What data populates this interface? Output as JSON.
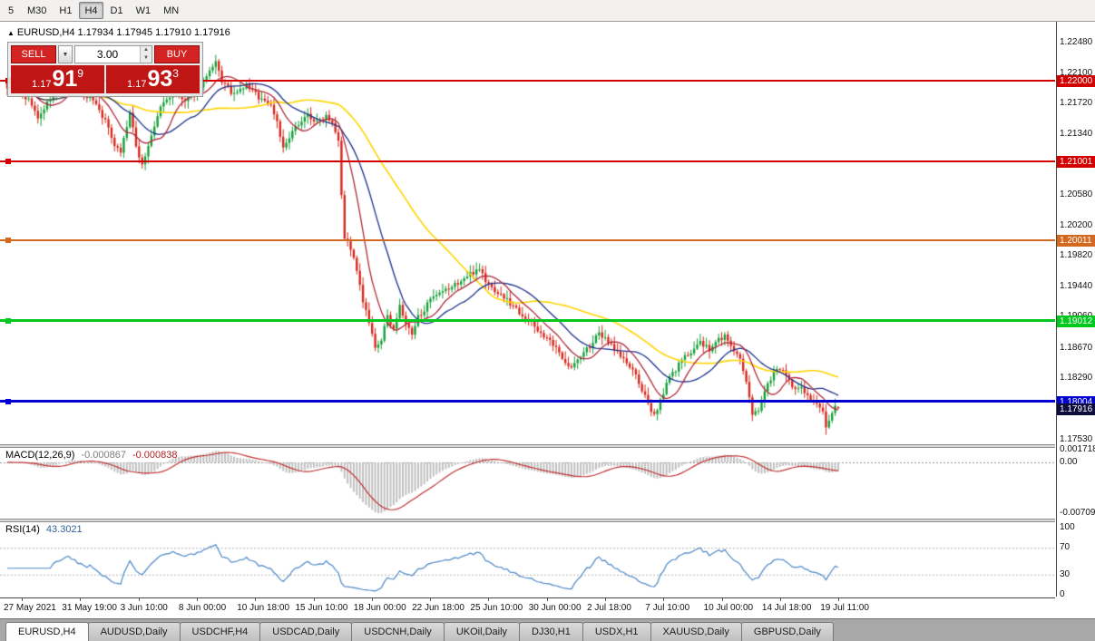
{
  "colors": {
    "candle_up": "#17a038",
    "candle_down": "#d8281c",
    "ma_fast": "#b02838",
    "ma_mid": "#1c2f8c",
    "ma_slow": "#ffd400",
    "macd_hist": "#c0c0c0",
    "macd_signal": "#c03030",
    "rsi_line": "#4a86c8",
    "buy_sell_red": "#d32222",
    "price_box_red": "#bf1515",
    "current_price_bg": "#0d0d3d"
  },
  "icons": {
    "collapse": "▲",
    "dropdown": "▼",
    "spin_up": "▲",
    "spin_down": "▼"
  },
  "toolbar": {
    "timeframes": [
      {
        "label": "5",
        "active": false
      },
      {
        "label": "M30",
        "active": false
      },
      {
        "label": "H1",
        "active": false
      },
      {
        "label": "H4",
        "active": true
      },
      {
        "label": "D1",
        "active": false
      },
      {
        "label": "W1",
        "active": false
      },
      {
        "label": "MN",
        "active": false
      }
    ]
  },
  "symbol_header": {
    "text": "EURUSD,H4 1.17934 1.17945 1.17910 1.17916"
  },
  "trade_panel": {
    "sell_label": "SELL",
    "buy_label": "BUY",
    "volume_value": "3.00",
    "sell_price": {
      "prefix": "1.17",
      "big": "91",
      "sup": "9"
    },
    "buy_price": {
      "prefix": "1.17",
      "big": "93",
      "sup": "3"
    }
  },
  "price_axis": {
    "ticks": [
      "1.22480",
      "1.22100",
      "1.21720",
      "1.21340",
      "1.20960",
      "1.20580",
      "1.20200",
      "1.19820",
      "1.19440",
      "1.19060",
      "1.18670",
      "1.18290",
      "1.17910",
      "1.17530"
    ],
    "current_price_box": {
      "price": "1.17916",
      "value": 1.17916
    }
  },
  "levels": [
    {
      "price": "1.22000",
      "value": 1.22,
      "color": "#d40000",
      "thickness": 2
    },
    {
      "price": "1.21001",
      "value": 1.21001,
      "color": "#d40000",
      "thickness": 2
    },
    {
      "price": "1.20011",
      "value": 1.20011,
      "color": "#d2691e",
      "thickness": 2
    },
    {
      "price": "1.19012",
      "value": 1.19012,
      "color": "#00c81e",
      "thickness": 3
    },
    {
      "price": "1.18004",
      "value": 1.18004,
      "color": "#0000d0",
      "thickness": 3
    }
  ],
  "time_axis": {
    "labels": [
      "27 May 2021",
      "31 May 19:00",
      "3 Jun 10:00",
      "8 Jun 00:00",
      "10 Jun 18:00",
      "15 Jun 10:00",
      "18 Jun 00:00",
      "22 Jun 18:00",
      "25 Jun 10:00",
      "30 Jun 00:00",
      "2 Jul 18:00",
      "7 Jul 10:00",
      "10 Jul 00:00",
      "14 Jul 18:00",
      "19 Jul 11:00"
    ]
  },
  "indicators": {
    "macd": {
      "name": "MACD(12,26,9)",
      "main_value": "-0.000867",
      "signal_value": "-0.000838",
      "axis_labels": [
        {
          "text": "0.001718",
          "value": 0.001718
        },
        {
          "text": "0.00",
          "value": 0
        },
        {
          "text": "-0.00709",
          "value": -0.00709
        }
      ]
    },
    "rsi": {
      "name": "RSI(14)",
      "value": "43.3021",
      "axis_labels": [
        {
          "text": "100",
          "value": 100
        },
        {
          "text": "70",
          "value": 70
        },
        {
          "text": "30",
          "value": 30
        },
        {
          "text": "0",
          "value": 0
        }
      ],
      "level_lines": [
        70,
        30
      ]
    }
  },
  "bottom_tabs": [
    {
      "label": "EURUSD,H4",
      "active": true
    },
    {
      "label": "AUDUSD,Daily",
      "active": false
    },
    {
      "label": "USDCHF,H4",
      "active": false
    },
    {
      "label": "USDCAD,Daily",
      "active": false
    },
    {
      "label": "USDCNH,Daily",
      "active": false
    },
    {
      "label": "UKOil,Daily",
      "active": false
    },
    {
      "label": "DJ30,H1",
      "active": false
    },
    {
      "label": "USDX,H1",
      "active": false
    },
    {
      "label": "XAUUSD,Daily",
      "active": false
    },
    {
      "label": "GBPUSD,Daily",
      "active": false
    }
  ],
  "chart_data": {
    "type": "candlestick",
    "symbol": "EURUSD",
    "timeframe": "H4",
    "bars": 272,
    "seed": 9,
    "y_range": [
      1.1752,
      1.2274
    ],
    "ohlc_last": {
      "open": 1.17934,
      "high": 1.17945,
      "low": 1.1791,
      "close": 1.17916
    },
    "moving_averages": [
      {
        "period": 50,
        "color_key": "ma_slow"
      },
      {
        "period": 21,
        "color_key": "ma_mid"
      },
      {
        "period": 10,
        "color_key": "ma_fast"
      }
    ],
    "price_anchors": [
      [
        0,
        1.2193
      ],
      [
        4,
        1.2186
      ],
      [
        8,
        1.2172
      ],
      [
        10,
        1.2152
      ],
      [
        12,
        1.2166
      ],
      [
        16,
        1.2188
      ],
      [
        20,
        1.2198
      ],
      [
        24,
        1.2186
      ],
      [
        28,
        1.2178
      ],
      [
        32,
        1.215
      ],
      [
        35,
        1.2122
      ],
      [
        37,
        1.2112
      ],
      [
        40,
        1.216
      ],
      [
        42,
        1.2118
      ],
      [
        44,
        1.2096
      ],
      [
        47,
        1.213
      ],
      [
        50,
        1.2168
      ],
      [
        54,
        1.2186
      ],
      [
        58,
        1.2174
      ],
      [
        62,
        1.219
      ],
      [
        66,
        1.221
      ],
      [
        68,
        1.2222
      ],
      [
        70,
        1.22
      ],
      [
        74,
        1.2182
      ],
      [
        78,
        1.2195
      ],
      [
        82,
        1.218
      ],
      [
        86,
        1.217
      ],
      [
        88,
        1.215
      ],
      [
        90,
        1.2115
      ],
      [
        92,
        1.2128
      ],
      [
        95,
        1.2148
      ],
      [
        98,
        1.2158
      ],
      [
        101,
        1.2148
      ],
      [
        104,
        1.2158
      ],
      [
        106,
        1.215
      ],
      [
        108,
        1.2128
      ],
      [
        109,
        1.206
      ],
      [
        110,
        1.2005
      ],
      [
        112,
        1.1992
      ],
      [
        114,
        1.1962
      ],
      [
        116,
        1.1925
      ],
      [
        118,
        1.1898
      ],
      [
        120,
        1.1865
      ],
      [
        122,
        1.1878
      ],
      [
        124,
        1.1905
      ],
      [
        126,
        1.1892
      ],
      [
        128,
        1.1918
      ],
      [
        130,
        1.1898
      ],
      [
        132,
        1.1882
      ],
      [
        134,
        1.1906
      ],
      [
        138,
        1.1926
      ],
      [
        142,
        1.1936
      ],
      [
        146,
        1.1946
      ],
      [
        150,
        1.1956
      ],
      [
        154,
        1.1968
      ],
      [
        156,
        1.195
      ],
      [
        158,
        1.1942
      ],
      [
        162,
        1.193
      ],
      [
        166,
        1.1916
      ],
      [
        170,
        1.1902
      ],
      [
        174,
        1.1886
      ],
      [
        178,
        1.187
      ],
      [
        181,
        1.1856
      ],
      [
        184,
        1.1842
      ],
      [
        186,
        1.1852
      ],
      [
        190,
        1.187
      ],
      [
        193,
        1.1884
      ],
      [
        196,
        1.1876
      ],
      [
        199,
        1.1862
      ],
      [
        202,
        1.1848
      ],
      [
        205,
        1.1832
      ],
      [
        207,
        1.1815
      ],
      [
        209,
        1.1796
      ],
      [
        210,
        1.1784
      ],
      [
        212,
        1.1792
      ],
      [
        214,
        1.1812
      ],
      [
        216,
        1.183
      ],
      [
        219,
        1.1846
      ],
      [
        222,
        1.186
      ],
      [
        226,
        1.1874
      ],
      [
        229,
        1.1864
      ],
      [
        232,
        1.1878
      ],
      [
        234,
        1.1882
      ],
      [
        236,
        1.187
      ],
      [
        239,
        1.1852
      ],
      [
        241,
        1.1822
      ],
      [
        243,
        1.1786
      ],
      [
        245,
        1.1792
      ],
      [
        247,
        1.1812
      ],
      [
        249,
        1.183
      ],
      [
        251,
        1.1842
      ],
      [
        253,
        1.1836
      ],
      [
        255,
        1.1824
      ],
      [
        257,
        1.1814
      ],
      [
        259,
        1.182
      ],
      [
        261,
        1.1808
      ],
      [
        263,
        1.1798
      ],
      [
        265,
        1.1792
      ],
      [
        266,
        1.1786
      ],
      [
        267,
        1.1768
      ],
      [
        268,
        1.1778
      ],
      [
        269,
        1.1788
      ],
      [
        270,
        1.1794
      ],
      [
        271,
        1.17916
      ]
    ]
  }
}
